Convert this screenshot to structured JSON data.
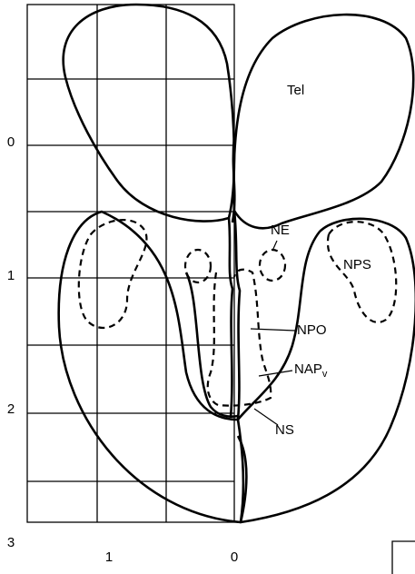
{
  "y_axis": {
    "labels": [
      "0",
      "1",
      "2",
      "3"
    ]
  },
  "x_axis": {
    "labels": [
      "1",
      "0"
    ]
  },
  "regions": [
    {
      "label": "Tel"
    },
    {
      "label": "NE"
    },
    {
      "label": "NPS"
    },
    {
      "label": "NPO"
    },
    {
      "label": "NAP",
      "subscript": "v"
    },
    {
      "label": "NS"
    }
  ]
}
